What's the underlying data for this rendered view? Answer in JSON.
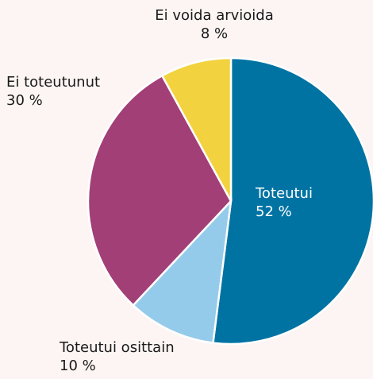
{
  "chart_data": {
    "type": "pie",
    "categories": [
      "Toteutui",
      "Toteutui osittain",
      "Ei toteutunut",
      "Ei voida arvioida"
    ],
    "values": [
      52,
      10,
      30,
      8
    ],
    "value_labels": [
      "52 %",
      "10 %",
      "30 %",
      "8 %"
    ],
    "colors": [
      "#0073a3",
      "#95cbea",
      "#a23f77",
      "#f3d23f"
    ]
  }
}
